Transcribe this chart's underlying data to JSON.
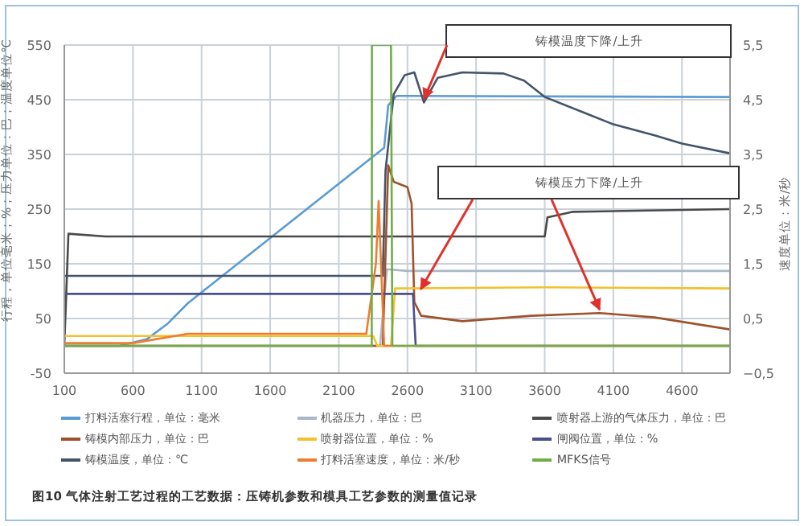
{
  "chart_data": {
    "type": "line",
    "title": "图10 气体注射工艺过程的工艺数据：压铸机参数和模具工艺参数的测量值记录",
    "ylabel": "行程，单位毫米；%；压力单位：巴；温度单位℃",
    "y2label": "速度单位：米/秒",
    "xlim": [
      100,
      4950
    ],
    "xticks": [
      100,
      600,
      1100,
      1600,
      2100,
      2600,
      3100,
      3600,
      4100,
      4600
    ],
    "ylim": [
      -50,
      550
    ],
    "yticks": [
      -50,
      50,
      150,
      250,
      350,
      450,
      550
    ],
    "y2lim": [
      -0.5,
      5.5
    ],
    "y2ticks": [
      {
        "value": -0.5,
        "label": "−0,5"
      },
      {
        "value": 0.5,
        "label": "0,5"
      },
      {
        "value": 1.5,
        "label": "1,5"
      },
      {
        "value": 2.5,
        "label": "2,5"
      },
      {
        "value": 3.5,
        "label": "3,5"
      },
      {
        "value": 4.5,
        "label": "4,5"
      },
      {
        "value": 5.5,
        "label": "5,5"
      }
    ],
    "grid": true,
    "legend": "bottom",
    "marker": "none",
    "line_style": "solid",
    "annotations": [
      "铸模温度下降/上升",
      {
        "text": "铸模压力下降/上升",
        "x": 4000,
        "y": 60
      }
    ],
    "series": [
      {
        "name": "打料活塞行程，单位：毫米",
        "color": "#5b9bd5",
        "x": [
          100,
          500,
          700,
          850,
          1000,
          2430,
          2460,
          2520,
          4950
        ],
        "values": [
          0,
          0,
          12,
          40,
          78,
          362,
          440,
          457,
          455
        ]
      },
      {
        "name": "机器压力，单位：巴",
        "color": "#a9b8c6",
        "x": [
          100,
          2400,
          2450,
          2600,
          4950
        ],
        "values": [
          0,
          0,
          140,
          137,
          137
        ]
      },
      {
        "name": "喷射器上游的气体压力，单位：巴",
        "color": "#4a4a4a",
        "x": [
          100,
          130,
          400,
          2600,
          3600,
          3620,
          3800,
          4950
        ],
        "values": [
          0,
          205,
          200,
          200,
          200,
          235,
          245,
          250
        ]
      },
      {
        "name": "铸模内部压力，单位：巴",
        "color": "#a0522d",
        "x": [
          100,
          2420,
          2460,
          2500,
          2600,
          2630,
          2650,
          2700,
          3000,
          3500,
          4000,
          4400,
          4950
        ],
        "values": [
          0,
          0,
          330,
          300,
          290,
          260,
          80,
          55,
          45,
          55,
          60,
          52,
          30
        ]
      },
      {
        "name": "喷射器位置，单位：%",
        "color": "#f2c12e",
        "x": [
          100,
          2350,
          2380,
          2480,
          2510,
          3600,
          4950
        ],
        "values": [
          18,
          18,
          0,
          0,
          105,
          107,
          105
        ]
      },
      {
        "name": "闸阀位置，单位：%",
        "color": "#4b4f8c",
        "x": [
          100,
          2640,
          2660,
          4950
        ],
        "values": [
          95,
          95,
          0,
          0
        ]
      },
      {
        "name": "铸模温度，单位：℃",
        "color": "#44546a",
        "x": [
          100,
          2420,
          2440,
          2500,
          2580,
          2650,
          2720,
          2820,
          3000,
          3300,
          3450,
          3600,
          3900,
          4100,
          4400,
          4600,
          4950
        ],
        "values": [
          128,
          128,
          320,
          460,
          495,
          500,
          445,
          490,
          500,
          498,
          485,
          455,
          425,
          405,
          385,
          370,
          352
        ]
      },
      {
        "name": "打料活塞速度，单位：米/秒",
        "color": "#ed7d31",
        "axis": "y2",
        "x": [
          100,
          600,
          1000,
          2300,
          2370,
          2390,
          2430,
          4950
        ],
        "values": [
          0.05,
          0.05,
          0.22,
          0.22,
          1.5,
          2.65,
          0,
          0
        ]
      },
      {
        "name": "MFKS信号",
        "color": "#70ad47",
        "x": [
          100,
          2340,
          2341,
          2480,
          2490,
          4950
        ],
        "values": [
          0,
          0,
          550,
          550,
          0,
          0
        ]
      }
    ]
  }
}
